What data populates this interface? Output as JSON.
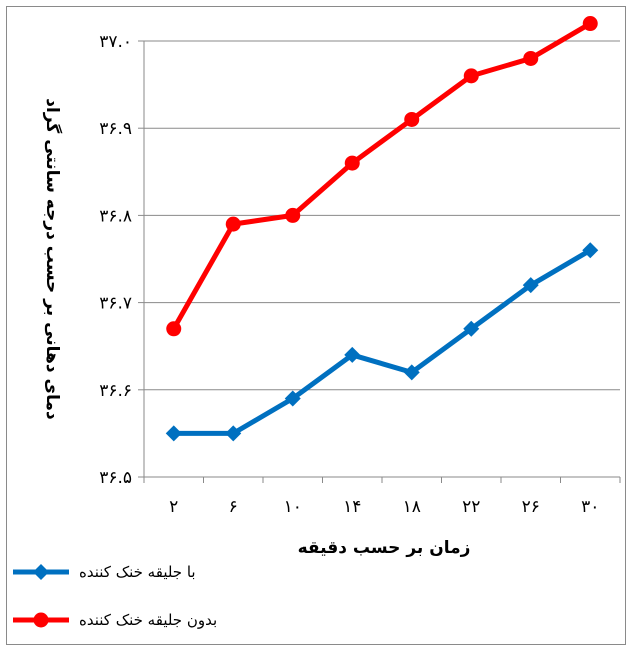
{
  "chart_data": {
    "type": "line",
    "title": "",
    "xlabel": "زمان بر حسب دقیقه",
    "ylabel": "دمای دهانی بر حسب درجه سانتی گراد",
    "categories": [
      "۲",
      "۶",
      "۱۰",
      "۱۴",
      "۱۸",
      "۲۲",
      "۲۶",
      "۳۰"
    ],
    "x": [
      2,
      6,
      10,
      14,
      18,
      22,
      26,
      30
    ],
    "ylim": [
      36.5,
      37.0
    ],
    "yticks": [
      36.5,
      36.6,
      36.7,
      36.8,
      36.9,
      37.0
    ],
    "ytick_labels": [
      "۳۶.۵",
      "۳۶.۶",
      "۳۶.۷",
      "۳۶.۸",
      "۳۶.۹",
      "۳۷.۰"
    ],
    "grid": "horizontal",
    "legend_position": "bottom-left",
    "series": [
      {
        "name": "با جلیقه خنک کننده",
        "marker": "diamond",
        "color": "#0070c0",
        "values": [
          36.55,
          36.55,
          36.59,
          36.64,
          36.62,
          36.67,
          36.72,
          36.76
        ]
      },
      {
        "name": "بدون جلیقه خنک کننده",
        "marker": "circle",
        "color": "#ff0000",
        "values": [
          36.67,
          36.79,
          36.8,
          36.86,
          36.91,
          36.96,
          36.98,
          37.02
        ]
      }
    ]
  }
}
